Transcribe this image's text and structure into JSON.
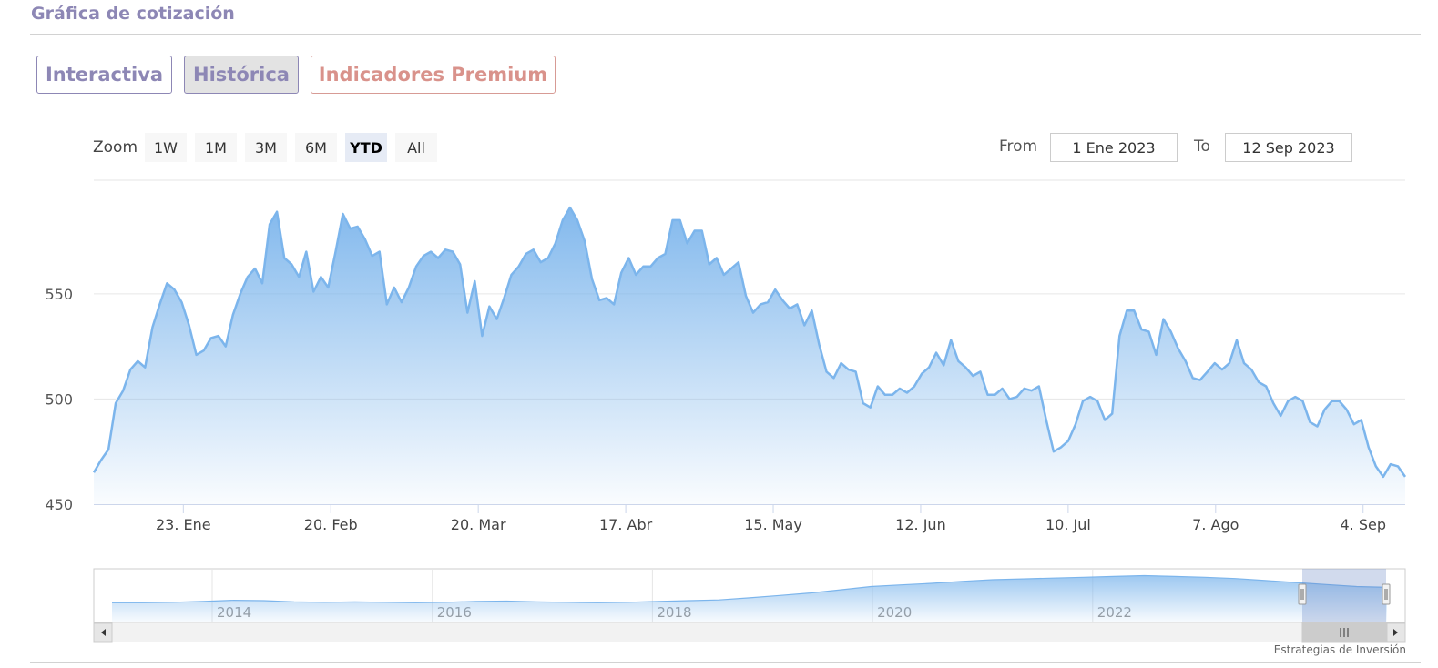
{
  "header": {
    "title": "Gráfica de cotización"
  },
  "tabs": [
    {
      "label": "Interactiva"
    },
    {
      "label": "Histórica"
    },
    {
      "label": "Indicadores Premium"
    }
  ],
  "zoom": {
    "label": "Zoom",
    "buttons": [
      "1W",
      "1M",
      "3M",
      "6M",
      "YTD",
      "All"
    ],
    "active": "YTD"
  },
  "range": {
    "from_label": "From",
    "from_value": "1 Ene 2023",
    "to_label": "To",
    "to_value": "12 Sep 2023"
  },
  "credit": "Estrategias de Inversión",
  "chart_data": {
    "type": "area",
    "x_ticks": [
      {
        "label": "23. Ene",
        "day": 22
      },
      {
        "label": "20. Feb",
        "day": 50
      },
      {
        "label": "20. Mar",
        "day": 78
      },
      {
        "label": "17. Abr",
        "day": 106
      },
      {
        "label": "15. May",
        "day": 134
      },
      {
        "label": "12. Jun",
        "day": 162
      },
      {
        "label": "10. Jul",
        "day": 190
      },
      {
        "label": "7. Ago",
        "day": 218
      },
      {
        "label": "4. Sep",
        "day": 246
      }
    ],
    "y_ticks": [
      450,
      500,
      550
    ],
    "ylim": [
      450,
      604
    ],
    "xlim_days": [
      5,
      254
    ],
    "values": [
      465,
      471,
      476,
      498,
      504,
      514,
      518,
      515,
      534,
      545,
      555,
      552,
      546,
      535,
      521,
      523,
      529,
      530,
      525,
      540,
      550,
      558,
      562,
      555,
      583,
      589,
      567,
      564,
      558,
      570,
      551,
      558,
      553,
      570,
      588,
      581,
      582,
      576,
      568,
      570,
      545,
      553,
      546,
      553,
      563,
      568,
      570,
      567,
      571,
      570,
      564,
      541,
      556,
      530,
      544,
      538,
      548,
      559,
      563,
      569,
      571,
      565,
      567,
      574,
      585,
      591,
      585,
      575,
      557,
      547,
      548,
      545,
      560,
      567,
      559,
      563,
      563,
      567,
      569,
      585,
      585,
      574,
      580,
      580,
      564,
      567,
      559,
      562,
      565,
      549,
      541,
      545,
      546,
      552,
      547,
      543,
      545,
      535,
      542,
      526,
      513,
      510,
      517,
      514,
      513,
      498,
      496,
      506,
      502,
      502,
      505,
      503,
      506,
      512,
      515,
      522,
      516,
      528,
      518,
      515,
      511,
      513,
      502,
      502,
      505,
      500,
      501,
      505,
      504,
      506,
      490,
      475,
      477,
      480,
      488,
      499,
      501,
      499,
      490,
      493,
      530,
      542,
      542,
      533,
      532,
      521,
      538,
      532,
      524,
      518,
      510,
      509,
      513,
      517,
      514,
      517,
      528,
      517,
      514,
      508,
      506,
      498,
      492,
      499,
      501,
      499,
      489,
      487,
      495,
      499,
      499,
      495,
      488,
      490,
      477,
      468,
      463,
      469,
      468,
      463
    ],
    "navigator": {
      "x_labels": [
        "2014",
        "2016",
        "2018",
        "2020",
        "2022"
      ],
      "values": [
        140,
        140,
        141,
        143,
        146,
        145,
        142,
        141,
        142,
        141,
        140,
        141,
        143,
        144,
        142,
        141,
        140,
        141,
        143,
        145,
        147,
        152,
        158,
        164,
        172,
        180,
        184,
        188,
        193,
        197,
        199,
        201,
        203,
        205,
        207,
        205,
        203,
        200,
        195,
        190,
        185,
        180,
        178
      ]
    }
  }
}
